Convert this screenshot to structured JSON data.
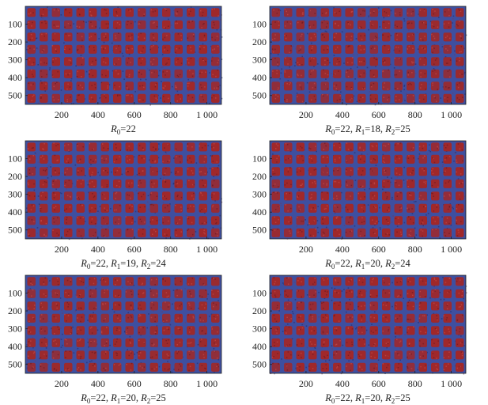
{
  "chart_data": [
    {
      "type": "heatmap",
      "caption_parts": [
        {
          "t": "R",
          "i": true
        },
        {
          "t": "0",
          "sub": true
        },
        {
          "t": "=22"
        }
      ],
      "xticks": [
        200,
        400,
        600,
        800,
        1000
      ],
      "xtick_labels": [
        "200",
        "400",
        "600",
        "800",
        "1 000"
      ],
      "yticks": [
        100,
        200,
        300,
        400,
        500
      ],
      "xlim": [
        0,
        1080
      ],
      "ylim": [
        0,
        550
      ],
      "grid_size": [
        16,
        8
      ],
      "colors": {
        "cell": "#a0282a",
        "background": "#3e4fa0"
      }
    },
    {
      "type": "heatmap",
      "caption_parts": [
        {
          "t": "R",
          "i": true
        },
        {
          "t": "0",
          "sub": true
        },
        {
          "t": "=22, "
        },
        {
          "t": "R",
          "i": true
        },
        {
          "t": "1",
          "sub": true
        },
        {
          "t": "=18, "
        },
        {
          "t": "R",
          "i": true
        },
        {
          "t": "2",
          "sub": true
        },
        {
          "t": "=25"
        }
      ],
      "xticks": [
        200,
        400,
        600,
        800,
        1000
      ],
      "xtick_labels": [
        "200",
        "400",
        "600",
        "800",
        "1 000"
      ],
      "yticks": [
        100,
        200,
        300,
        400,
        500
      ],
      "xlim": [
        0,
        1080
      ],
      "ylim": [
        0,
        550
      ],
      "grid_size": [
        16,
        8
      ],
      "colors": {
        "cell": "#9a2a2e",
        "background": "#3e4fa0"
      }
    },
    {
      "type": "heatmap",
      "caption_parts": [
        {
          "t": "R",
          "i": true
        },
        {
          "t": "0",
          "sub": true
        },
        {
          "t": "=22, "
        },
        {
          "t": "R",
          "i": true
        },
        {
          "t": "1",
          "sub": true
        },
        {
          "t": "=19, "
        },
        {
          "t": "R",
          "i": true
        },
        {
          "t": "2",
          "sub": true
        },
        {
          "t": "=24"
        }
      ],
      "xticks": [
        200,
        400,
        600,
        800,
        1000
      ],
      "xtick_labels": [
        "200",
        "400",
        "600",
        "800",
        "1 000"
      ],
      "yticks": [
        100,
        200,
        300,
        400,
        500
      ],
      "xlim": [
        0,
        1080
      ],
      "ylim": [
        0,
        550
      ],
      "grid_size": [
        16,
        8
      ],
      "colors": {
        "cell": "#a0282a",
        "background": "#3e4fa0"
      }
    },
    {
      "type": "heatmap",
      "caption_parts": [
        {
          "t": "R",
          "i": true
        },
        {
          "t": "0",
          "sub": true
        },
        {
          "t": "=22, "
        },
        {
          "t": "R",
          "i": true
        },
        {
          "t": "1",
          "sub": true
        },
        {
          "t": "=20, "
        },
        {
          "t": "R",
          "i": true
        },
        {
          "t": "2",
          "sub": true
        },
        {
          "t": "=24"
        }
      ],
      "xticks": [
        200,
        400,
        600,
        800,
        1000
      ],
      "xtick_labels": [
        "200",
        "400",
        "600",
        "800",
        "1 000"
      ],
      "yticks": [
        100,
        200,
        300,
        400,
        500
      ],
      "xlim": [
        0,
        1080
      ],
      "ylim": [
        0,
        550
      ],
      "grid_size": [
        16,
        8
      ],
      "colors": {
        "cell": "#a0282a",
        "background": "#3e4fa0"
      }
    },
    {
      "type": "heatmap",
      "caption_parts": [
        {
          "t": "R",
          "i": true
        },
        {
          "t": "0",
          "sub": true
        },
        {
          "t": "=22, "
        },
        {
          "t": "R",
          "i": true
        },
        {
          "t": "1",
          "sub": true
        },
        {
          "t": "=20, "
        },
        {
          "t": "R",
          "i": true
        },
        {
          "t": "2",
          "sub": true
        },
        {
          "t": "=25"
        }
      ],
      "xticks": [
        200,
        400,
        600,
        800,
        1000
      ],
      "xtick_labels": [
        "200",
        "400",
        "600",
        "800",
        "1 000"
      ],
      "yticks": [
        100,
        200,
        300,
        400,
        500
      ],
      "xlim": [
        0,
        1080
      ],
      "ylim": [
        0,
        550
      ],
      "grid_size": [
        16,
        8
      ],
      "colors": {
        "cell": "#9c2a2c",
        "background": "#3e4fa0"
      }
    },
    {
      "type": "heatmap",
      "caption_parts": [
        {
          "t": "R",
          "i": true
        },
        {
          "t": "0",
          "sub": true
        },
        {
          "t": "=22, "
        },
        {
          "t": "R",
          "i": true
        },
        {
          "t": "1",
          "sub": true
        },
        {
          "t": "=20, "
        },
        {
          "t": "R",
          "i": true
        },
        {
          "t": "2",
          "sub": true
        },
        {
          "t": "=25"
        }
      ],
      "xticks": [
        200,
        400,
        600,
        800,
        1000
      ],
      "xtick_labels": [
        "200",
        "400",
        "600",
        "800",
        "1 000"
      ],
      "yticks": [
        100,
        200,
        300,
        400,
        500
      ],
      "xlim": [
        0,
        1080
      ],
      "ylim": [
        0,
        550
      ],
      "grid_size": [
        16,
        8
      ],
      "colors": {
        "cell": "#a0282a",
        "background": "#3e4fa0"
      }
    }
  ]
}
